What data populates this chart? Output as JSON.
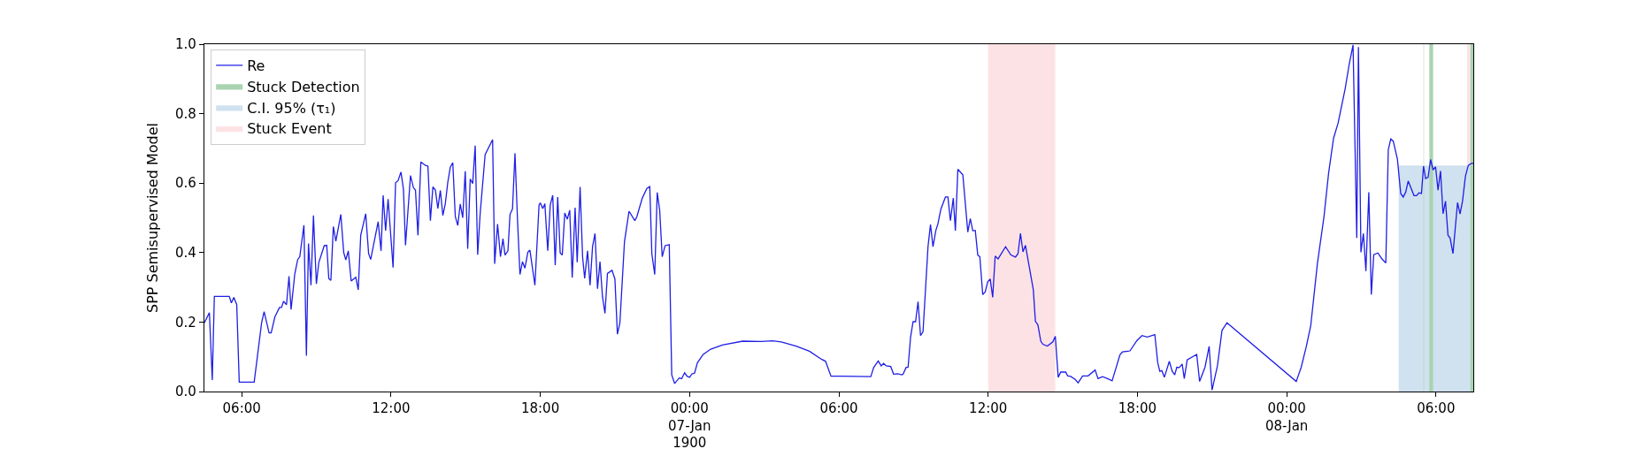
{
  "chart_data": {
    "type": "line",
    "ylabel": "SPP Semisupervised Model",
    "xlim": [
      "1900-01-06T04:30",
      "1900-01-08T07:30"
    ],
    "xticks": [
      {
        "value": "1900-01-06T06:00",
        "label": "06:00"
      },
      {
        "value": "1900-01-06T12:00",
        "label": "12:00"
      },
      {
        "value": "1900-01-06T18:00",
        "label": "18:00"
      },
      {
        "value": "1900-01-07T00:00",
        "label": "00:00\n07-Jan\n1900"
      },
      {
        "value": "1900-01-07T06:00",
        "label": "06:00"
      },
      {
        "value": "1900-01-07T12:00",
        "label": "12:00"
      },
      {
        "value": "1900-01-07T18:00",
        "label": "18:00"
      },
      {
        "value": "1900-01-08T00:00",
        "label": "00:00\n08-Jan"
      },
      {
        "value": "1900-01-08T06:00",
        "label": "06:00"
      }
    ],
    "ylim": [
      0,
      1
    ],
    "yticks": [
      {
        "value": 0,
        "label": "0.0"
      },
      0.2,
      0.4,
      0.6,
      0.8,
      {
        "value": 1,
        "label": "1.0"
      }
    ],
    "legend": "top left",
    "series": [
      {
        "name": "Re",
        "color": "#1f1fe6",
        "x": [
          "1900-01-06T04:30",
          "1900-01-06T04:42",
          "1900-01-06T04:49",
          "1900-01-06T04:54",
          "1900-01-06T05:30",
          "1900-01-06T05:35",
          "1900-01-06T05:41",
          "1900-01-06T05:48",
          "1900-01-06T05:54",
          "1900-01-06T06:30",
          "1900-01-06T06:48",
          "1900-01-06T06:54",
          "1900-01-06T07:06",
          "1900-01-06T07:11",
          "1900-01-06T07:20",
          "1900-01-06T07:31",
          "1900-01-06T07:36",
          "1900-01-06T07:41",
          "1900-01-06T07:48",
          "1900-01-06T07:54",
          "1900-01-06T07:59",
          "1900-01-06T08:08",
          "1900-01-06T08:15",
          "1900-01-06T08:20",
          "1900-01-06T08:30",
          "1900-01-06T08:36",
          "1900-01-06T08:41",
          "1900-01-06T08:47",
          "1900-01-06T08:53",
          "1900-01-06T09:00",
          "1900-01-06T09:06",
          "1900-01-06T09:19",
          "1900-01-06T09:25",
          "1900-01-06T09:30",
          "1900-01-06T09:35",
          "1900-01-06T09:41",
          "1900-01-06T09:47",
          "1900-01-06T09:59",
          "1900-01-06T10:06",
          "1900-01-06T10:11",
          "1900-01-06T10:17",
          "1900-01-06T10:24",
          "1900-01-06T10:35",
          "1900-01-06T10:41",
          "1900-01-06T10:47",
          "1900-01-06T10:59",
          "1900-01-06T11:06",
          "1900-01-06T11:11",
          "1900-01-06T11:29",
          "1900-01-06T11:36",
          "1900-01-06T11:41",
          "1900-01-06T11:47",
          "1900-01-06T11:53",
          "1900-01-06T12:05",
          "1900-01-06T12:11",
          "1900-01-06T12:17",
          "1900-01-06T12:24",
          "1900-01-06T12:30",
          "1900-01-06T12:35",
          "1900-01-06T12:47",
          "1900-01-06T12:54",
          "1900-01-06T12:59",
          "1900-01-06T13:05",
          "1900-01-06T13:12",
          "1900-01-06T13:23",
          "1900-01-06T13:29",
          "1900-01-06T13:35",
          "1900-01-06T13:41",
          "1900-01-06T13:47",
          "1900-01-06T13:53",
          "1900-01-06T13:59",
          "1900-01-06T14:05",
          "1900-01-06T14:11",
          "1900-01-06T14:17",
          "1900-01-06T14:23",
          "1900-01-06T14:29",
          "1900-01-06T14:35",
          "1900-01-06T14:41",
          "1900-01-06T14:47",
          "1900-01-06T14:53",
          "1900-01-06T14:59",
          "1900-01-06T15:05",
          "1900-01-06T15:11",
          "1900-01-06T15:17",
          "1900-01-06T15:23",
          "1900-01-06T15:29",
          "1900-01-06T15:35",
          "1900-01-06T15:47",
          "1900-01-06T16:05",
          "1900-01-06T16:10",
          "1900-01-06T16:17",
          "1900-01-06T16:24",
          "1900-01-06T16:30",
          "1900-01-06T16:35",
          "1900-01-06T16:42",
          "1900-01-06T16:47",
          "1900-01-06T16:53",
          "1900-01-06T16:59",
          "1900-01-06T17:05",
          "1900-01-06T17:11",
          "1900-01-06T17:17",
          "1900-01-06T17:23",
          "1900-01-06T17:30",
          "1900-01-06T17:35",
          "1900-01-06T17:47",
          "1900-01-06T17:57",
          "1900-01-06T18:00",
          "1900-01-06T18:06",
          "1900-01-06T18:11",
          "1900-01-06T18:18",
          "1900-01-06T18:24",
          "1900-01-06T18:30",
          "1900-01-06T18:36",
          "1900-01-06T18:42",
          "1900-01-06T18:48",
          "1900-01-06T18:53",
          "1900-01-06T18:59",
          "1900-01-06T19:05",
          "1900-01-06T19:11",
          "1900-01-06T19:17",
          "1900-01-06T19:24",
          "1900-01-06T19:29",
          "1900-01-06T19:36",
          "1900-01-06T19:42",
          "1900-01-06T19:47",
          "1900-01-06T19:54",
          "1900-01-06T20:00",
          "1900-01-06T20:06",
          "1900-01-06T20:12",
          "1900-01-06T20:18",
          "1900-01-06T20:24",
          "1900-01-06T20:30",
          "1900-01-06T20:36",
          "1900-01-06T20:42",
          "1900-01-06T20:53",
          "1900-01-06T21:00",
          "1900-01-06T21:06",
          "1900-01-06T21:12",
          "1900-01-06T21:23",
          "1900-01-06T21:34",
          "1900-01-06T21:48",
          "1900-01-06T21:53",
          "1900-01-06T22:06",
          "1900-01-06T22:17",
          "1900-01-06T22:24",
          "1900-01-06T22:29",
          "1900-01-06T22:36",
          "1900-01-06T22:42",
          "1900-01-06T22:48",
          "1900-01-06T22:54",
          "1900-01-06T23:01",
          "1900-01-06T23:11",
          "1900-01-06T23:17",
          "1900-01-06T23:24",
          "1900-01-06T23:35",
          "1900-01-06T23:41",
          "1900-01-06T23:48",
          "1900-01-06T23:54",
          "1900-01-07T00:00",
          "1900-01-07T00:06",
          "1900-01-07T00:12",
          "1900-01-07T00:19",
          "1900-01-07T00:33",
          "1900-01-07T00:51",
          "1900-01-07T01:19",
          "1900-01-07T02:08",
          "1900-01-07T02:52",
          "1900-01-07T03:20",
          "1900-01-07T03:41",
          "1900-01-07T04:17",
          "1900-01-07T04:49",
          "1900-01-07T05:18",
          "1900-01-07T05:28",
          "1900-01-07T05:41",
          "1900-01-07T06:04",
          "1900-01-07T07:17",
          "1900-01-07T07:24",
          "1900-01-07T07:35",
          "1900-01-07T07:42",
          "1900-01-07T07:48",
          "1900-01-07T07:54",
          "1900-01-07T08:05",
          "1900-01-07T08:12",
          "1900-01-07T08:22",
          "1900-01-07T08:32",
          "1900-01-07T08:35",
          "1900-01-07T08:42",
          "1900-01-07T08:47",
          "1900-01-07T08:53",
          "1900-01-07T08:59",
          "1900-01-07T09:05",
          "1900-01-07T09:11",
          "1900-01-07T09:17",
          "1900-01-07T09:23",
          "1900-01-07T09:35",
          "1900-01-07T09:41",
          "1900-01-07T09:47",
          "1900-01-07T09:54",
          "1900-01-07T09:59",
          "1900-01-07T10:06",
          "1900-01-07T10:17",
          "1900-01-07T10:23",
          "1900-01-07T10:29",
          "1900-01-07T10:36",
          "1900-01-07T10:41",
          "1900-01-07T10:47",
          "1900-01-07T10:59",
          "1900-01-07T11:11",
          "1900-01-07T11:17",
          "1900-01-07T11:23",
          "1900-01-07T11:29",
          "1900-01-07T11:35",
          "1900-01-07T11:40",
          "1900-01-07T11:47",
          "1900-01-07T11:53",
          "1900-01-07T11:59",
          "1900-01-07T12:05",
          "1900-01-07T12:11",
          "1900-01-07T12:17",
          "1900-01-07T12:24",
          "1900-01-07T12:42",
          "1900-01-07T12:55",
          "1900-01-07T13:06",
          "1900-01-07T13:12",
          "1900-01-07T13:18",
          "1900-01-07T13:24",
          "1900-01-07T13:30",
          "1900-01-07T13:49",
          "1900-01-07T13:54",
          "1900-01-07T14:00",
          "1900-01-07T14:07",
          "1900-01-07T14:12",
          "1900-01-07T14:23",
          "1900-01-07T14:36",
          "1900-01-07T14:42",
          "1900-01-07T14:49",
          "1900-01-07T14:55",
          "1900-01-07T15:07",
          "1900-01-07T15:12",
          "1900-01-07T15:18",
          "1900-01-07T15:30",
          "1900-01-07T15:37",
          "1900-01-07T15:48",
          "1900-01-07T16:01",
          "1900-01-07T16:18",
          "1900-01-07T16:25",
          "1900-01-07T16:36",
          "1900-01-07T16:48",
          "1900-01-07T16:59",
          "1900-01-07T17:18",
          "1900-01-07T17:24",
          "1900-01-07T17:42",
          "1900-01-07T17:59",
          "1900-01-07T18:11",
          "1900-01-07T18:24",
          "1900-01-07T18:42",
          "1900-01-07T18:49",
          "1900-01-07T18:54",
          "1900-01-07T18:59",
          "1900-01-07T19:05",
          "1900-01-07T19:17",
          "1900-01-07T19:24",
          "1900-01-07T19:30",
          "1900-01-07T19:35",
          "1900-01-07T19:41",
          "1900-01-07T19:48",
          "1900-01-07T19:53",
          "1900-01-07T20:00",
          "1900-01-07T20:23",
          "1900-01-07T20:30",
          "1900-01-07T20:43",
          "1900-01-07T20:53",
          "1900-01-07T21:00",
          "1900-01-07T21:13",
          "1900-01-07T21:24",
          "1900-01-07T21:36",
          "1900-01-08T00:23",
          "1900-01-08T00:35",
          "1900-01-08T00:47",
          "1900-01-08T00:58",
          "1900-01-08T01:14",
          "1900-01-08T01:30",
          "1900-01-08T01:41",
          "1900-01-08T01:53",
          "1900-01-08T02:04",
          "1900-01-08T02:21",
          "1900-01-08T02:31",
          "1900-01-08T02:40",
          "1900-01-08T02:49",
          "1900-01-08T02:53",
          "1900-01-08T02:59",
          "1900-01-08T03:05",
          "1900-01-08T03:11",
          "1900-01-08T03:18",
          "1900-01-08T03:24",
          "1900-01-08T03:30",
          "1900-01-08T03:40",
          "1900-01-08T03:49",
          "1900-01-08T03:59",
          "1900-01-08T04:05",
          "1900-01-08T04:11",
          "1900-01-08T04:17",
          "1900-01-08T04:27",
          "1900-01-08T04:35",
          "1900-01-08T04:41",
          "1900-01-08T04:47",
          "1900-01-08T04:53",
          "1900-01-08T05:07",
          "1900-01-08T05:13",
          "1900-01-08T05:19",
          "1900-01-08T05:25",
          "1900-01-08T05:30",
          "1900-01-08T05:35",
          "1900-01-08T05:41",
          "1900-01-08T05:47",
          "1900-01-08T05:53",
          "1900-01-08T05:59",
          "1900-01-08T06:05",
          "1900-01-08T06:11",
          "1900-01-08T06:17",
          "1900-01-08T06:23",
          "1900-01-08T06:29",
          "1900-01-08T06:34",
          "1900-01-08T06:41",
          "1900-01-08T06:52",
          "1900-01-08T06:58",
          "1900-01-08T07:04",
          "1900-01-08T07:11",
          "1900-01-08T07:18",
          "1900-01-08T07:25",
          "1900-01-08T07:30"
        ],
        "values": [
          0.198,
          0.227,
          0.033,
          0.274,
          0.274,
          0.255,
          0.271,
          0.25,
          0.027,
          0.027,
          0.198,
          0.23,
          0.169,
          0.169,
          0.215,
          0.242,
          0.242,
          0.26,
          0.25,
          0.332,
          0.236,
          0.339,
          0.38,
          0.388,
          0.479,
          0.103,
          0.426,
          0.306,
          0.507,
          0.31,
          0.372,
          0.42,
          0.421,
          0.325,
          0.32,
          0.475,
          0.433,
          0.51,
          0.4,
          0.379,
          0.405,
          0.318,
          0.329,
          0.293,
          0.45,
          0.512,
          0.397,
          0.38,
          0.489,
          0.405,
          0.565,
          0.463,
          0.554,
          0.357,
          0.601,
          0.607,
          0.632,
          0.583,
          0.421,
          0.622,
          0.587,
          0.58,
          0.45,
          0.661,
          0.651,
          0.649,
          0.492,
          0.589,
          0.58,
          0.527,
          0.579,
          0.507,
          0.541,
          0.603,
          0.646,
          0.659,
          0.504,
          0.478,
          0.54,
          0.5,
          0.634,
          0.411,
          0.612,
          0.599,
          0.708,
          0.394,
          0.512,
          0.682,
          0.725,
          0.368,
          0.482,
          0.388,
          0.44,
          0.393,
          0.405,
          0.51,
          0.526,
          0.686,
          0.496,
          0.337,
          0.374,
          0.355,
          0.401,
          0.407,
          0.306,
          0.537,
          0.543,
          0.527,
          0.541,
          0.405,
          0.537,
          0.565,
          0.364,
          0.56,
          0.399,
          0.393,
          0.514,
          0.496,
          0.522,
          0.328,
          0.529,
          0.372,
          0.589,
          0.388,
          0.326,
          0.405,
          0.306,
          0.417,
          0.455,
          0.296,
          0.374,
          0.273,
          0.225,
          0.34,
          0.349,
          0.324,
          0.165,
          0.198,
          0.431,
          0.519,
          0.492,
          0.504,
          0.557,
          0.585,
          0.59,
          0.397,
          0.337,
          0.573,
          0.521,
          0.388,
          0.42,
          0.423,
          0.048,
          0.023,
          0.039,
          0.037,
          0.054,
          0.044,
          0.041,
          0.051,
          0.053,
          0.083,
          0.107,
          0.122,
          0.134,
          0.145,
          0.144,
          0.146,
          0.143,
          0.131,
          0.116,
          0.093,
          0.087,
          0.044,
          0.044,
          0.043,
          0.069,
          0.088,
          0.074,
          0.081,
          0.074,
          0.072,
          0.05,
          0.051,
          0.048,
          0.05,
          0.069,
          0.07,
          0.157,
          0.201,
          0.201,
          0.259,
          0.161,
          0.172,
          0.417,
          0.481,
          0.417,
          0.464,
          0.483,
          0.525,
          0.56,
          0.56,
          0.492,
          0.557,
          0.463,
          0.64,
          0.624,
          0.459,
          0.498,
          0.463,
          0.464,
          0.393,
          0.388,
          0.279,
          0.287,
          0.316,
          0.324,
          0.271,
          0.39,
          0.382,
          0.417,
          0.393,
          0.387,
          0.397,
          0.455,
          0.402,
          0.421,
          0.293,
          0.202,
          0.192,
          0.145,
          0.136,
          0.131,
          0.143,
          0.159,
          0.041,
          0.056,
          0.056,
          0.045,
          0.044,
          0.035,
          0.025,
          0.045,
          0.045,
          0.062,
          0.037,
          0.043,
          0.037,
          0.031,
          0.106,
          0.114,
          0.117,
          0.147,
          0.161,
          0.157,
          0.164,
          0.083,
          0.058,
          0.06,
          0.041,
          0.087,
          0.058,
          0.048,
          0.07,
          0.069,
          0.079,
          0.037,
          0.091,
          0.107,
          0.029,
          0.07,
          0.13,
          0.004,
          0.074,
          0.176,
          0.198,
          0.029,
          0.07,
          0.128,
          0.19,
          0.368,
          0.504,
          0.628,
          0.729,
          0.773,
          0.872,
          0.944,
          0.998,
          0.442,
          0.992,
          0.401,
          0.455,
          0.347,
          0.574,
          0.279,
          0.394,
          0.399,
          0.383,
          0.37,
          0.696,
          0.727,
          0.721,
          0.669,
          0.57,
          0.56,
          0.574,
          0.606,
          0.564,
          0.564,
          0.572,
          0.57,
          0.649,
          0.613,
          0.617,
          0.668,
          0.638,
          0.647,
          0.58,
          0.635,
          0.512,
          0.548,
          0.45,
          0.442,
          0.397,
          0.544,
          0.511,
          0.548,
          0.62,
          0.651,
          0.657,
          0.657
        ]
      },
      {
        "name": "Stuck Detection",
        "type": "area",
        "color": "#a9d3b1",
        "x": [
          "1900-01-08T05:30",
          "1900-01-08T05:31",
          "1900-01-08T05:37",
          "1900-01-08T05:44",
          "1900-01-08T05:53",
          "1900-01-08T07:00",
          "1900-01-08T07:23",
          "1900-01-08T07:30"
        ],
        "values": [
          1,
          1,
          null,
          1,
          1,
          null,
          1,
          1
        ]
      },
      {
        "name": "C.I. 95% (τ₁)",
        "type": "area",
        "color": "#d0e1ef",
        "x": [
          "1900-01-08T04:30",
          "1900-01-08T07:30"
        ],
        "values": [
          0.65,
          0.65
        ]
      },
      {
        "name": "Stuck Event",
        "type": "area",
        "color": "#fde2e5",
        "x": [
          "1900-01-07T12:00",
          "1900-01-07T14:42",
          "1900-01-08T00:00",
          "1900-01-08T07:15",
          "1900-01-08T07:23"
        ],
        "values": [
          1,
          1,
          null,
          1,
          1
        ]
      }
    ]
  }
}
